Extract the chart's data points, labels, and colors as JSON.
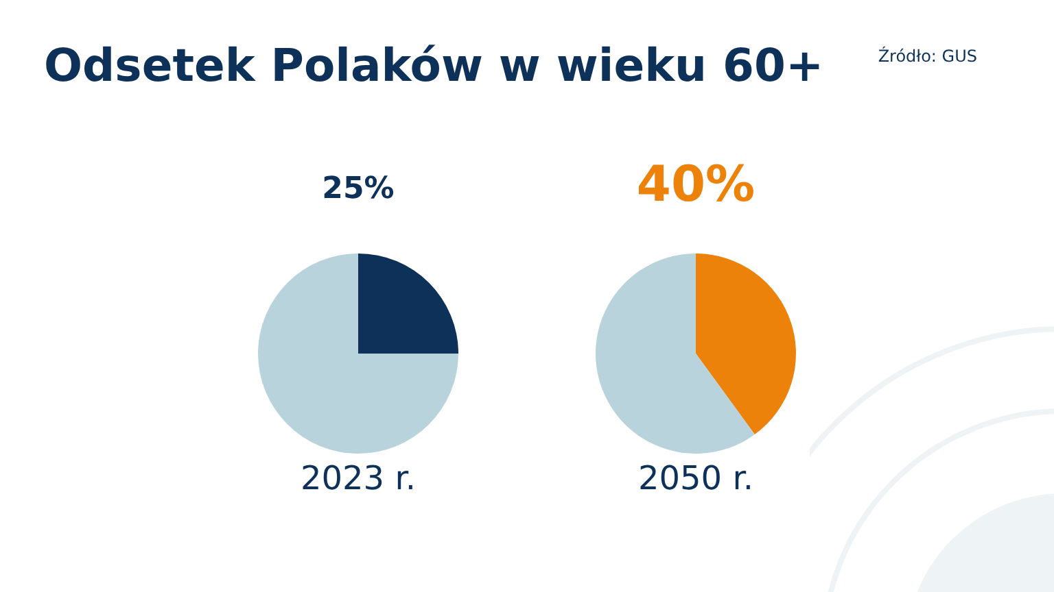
{
  "chart_data": [
    {
      "type": "pie",
      "title": "Odsetek Polaków w wieku 60+",
      "annotations": [
        "Źródło: GUS"
      ],
      "categories": [
        null,
        null
      ],
      "values": [
        25,
        75
      ],
      "colors": [
        "#0d3158",
        "#b9d3dd"
      ],
      "value_labels": [
        "25%",
        null
      ],
      "xlabel": "2023 r."
    },
    {
      "type": "pie",
      "categories": [
        null,
        null
      ],
      "values": [
        40,
        60
      ],
      "colors": [
        "#ec820a",
        "#b9d3dd"
      ],
      "value_labels": [
        "40%",
        null
      ],
      "xlabel": "2050 r."
    }
  ]
}
